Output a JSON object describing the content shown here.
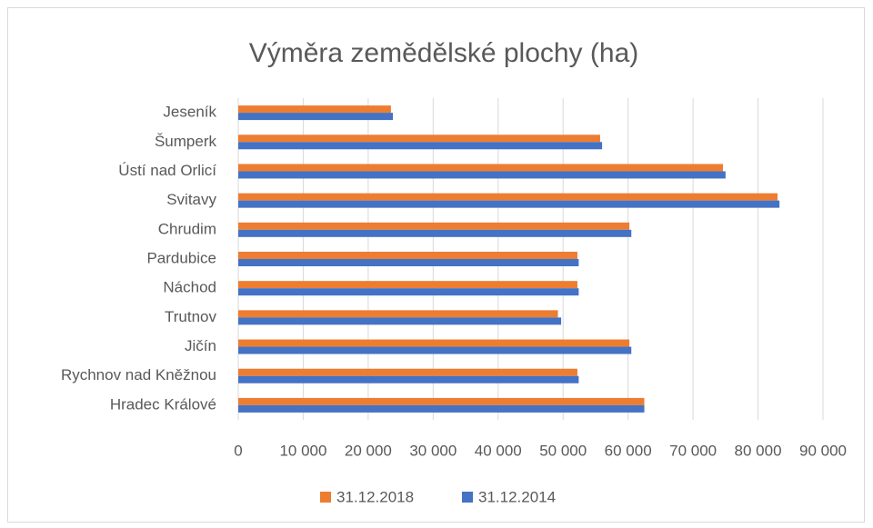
{
  "chart_data": {
    "type": "bar",
    "orientation": "horizontal",
    "title": "Výměra zemědělské plochy (ha)",
    "categories": [
      "Jeseník",
      "Šumperk",
      "Ústí nad Orlicí",
      "Svitavy",
      "Chrudim",
      "Pardubice",
      "Náchod",
      "Trutnov",
      "Jičín",
      "Rychnov nad Kněžnou",
      "Hradec Králové"
    ],
    "series": [
      {
        "name": "31.12.2018",
        "color": "#ed7d31",
        "values": [
          23500,
          55700,
          74600,
          83000,
          60200,
          52200,
          52200,
          49200,
          60200,
          52200,
          62500
        ]
      },
      {
        "name": "31.12.2014",
        "color": "#4472c4",
        "values": [
          23800,
          56000,
          75000,
          83300,
          60500,
          52400,
          52400,
          49700,
          60500,
          52400,
          62500
        ]
      }
    ],
    "xlim": [
      0,
      90000
    ],
    "xticks": [
      0,
      {
        "value": 10000,
        "label": "10 000"
      },
      {
        "value": 20000,
        "label": "20 000"
      },
      {
        "value": 30000,
        "label": "30 000"
      },
      {
        "value": 40000,
        "label": "40 000"
      },
      {
        "value": 50000,
        "label": "50 000"
      },
      {
        "value": 60000,
        "label": "60 000"
      },
      {
        "value": 70000,
        "label": "70 000"
      },
      {
        "value": 80000,
        "label": "80 000"
      },
      {
        "value": 90000,
        "label": "90 000"
      }
    ],
    "grid": true,
    "legend": "bottom"
  }
}
